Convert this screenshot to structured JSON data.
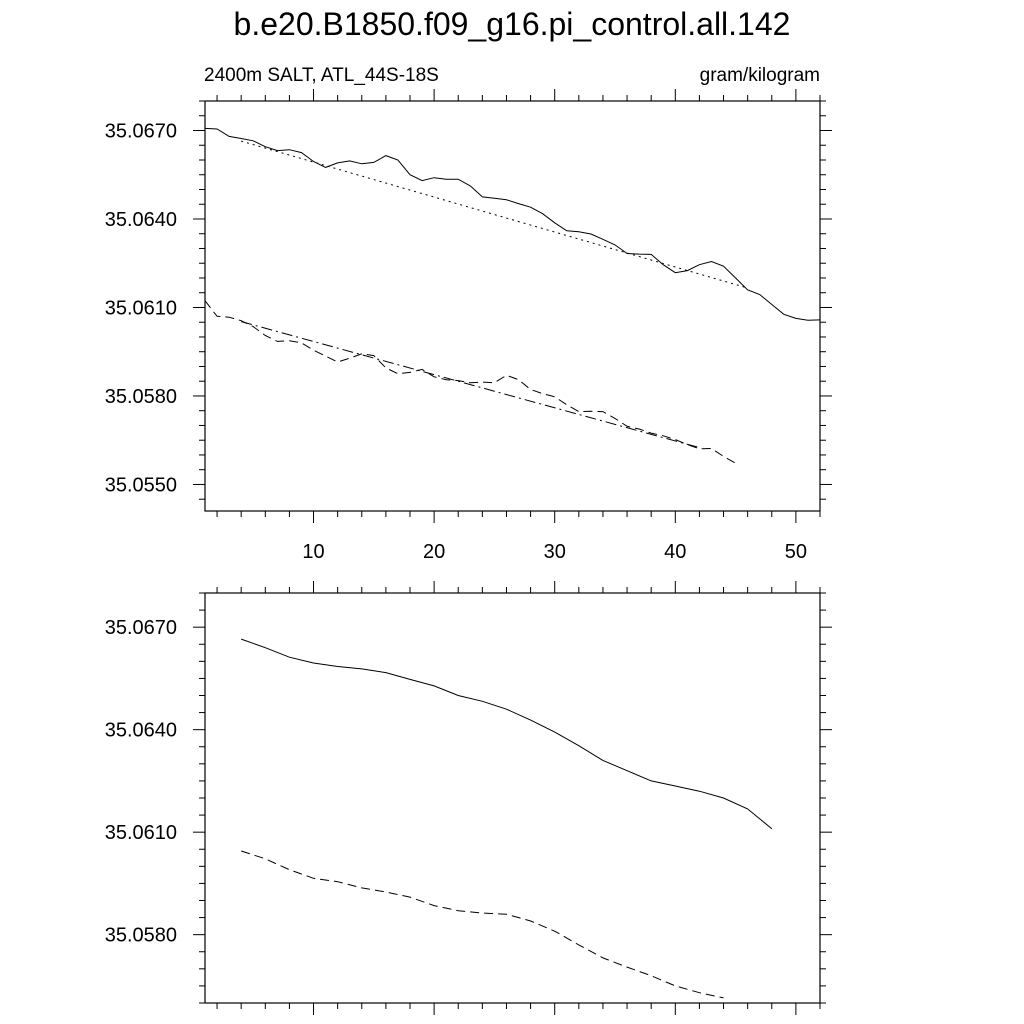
{
  "title": "b.e20.B1850.f09_g16.pi_control.all.142",
  "subtitle_left": "2400m SALT, ATL_44S-18S",
  "subtitle_right": "gram/kilogram",
  "chart_data": [
    {
      "type": "line",
      "panel": "top",
      "xlim": [
        1,
        52
      ],
      "ylim": [
        35.0541,
        35.068
      ],
      "xticks": [
        10,
        20,
        30,
        40,
        50
      ],
      "yticks": [
        35.055,
        35.058,
        35.061,
        35.064,
        35.067
      ],
      "ytick_labels": [
        "35.0550",
        "35.0580",
        "35.0610",
        "35.0640",
        "35.0670"
      ],
      "xtick_labels": [
        "10",
        "20",
        "30",
        "40",
        "50"
      ],
      "series": [
        {
          "style": "solid",
          "x": [
            1,
            2,
            3,
            4,
            5,
            6,
            7,
            8,
            9,
            10,
            11,
            12,
            13,
            14,
            15,
            16,
            17,
            18,
            19,
            20,
            21,
            22,
            23,
            24,
            25,
            26,
            27,
            28,
            29,
            30,
            31,
            32,
            33,
            34,
            35,
            36,
            37,
            38,
            39,
            40,
            41,
            42,
            43,
            44,
            45,
            46,
            47,
            48,
            49,
            50,
            51,
            52
          ],
          "y": [
            35.06707,
            35.06705,
            35.0668,
            35.06673,
            35.06665,
            35.06645,
            35.06632,
            35.06635,
            35.06625,
            35.06595,
            35.06575,
            35.0659,
            35.06597,
            35.06587,
            35.06592,
            35.06615,
            35.066,
            35.0655,
            35.0653,
            35.0654,
            35.06535,
            35.06535,
            35.06512,
            35.06475,
            35.0647,
            35.06465,
            35.06452,
            35.0644,
            35.06418,
            35.06387,
            35.0636,
            35.06357,
            35.06349,
            35.06331,
            35.06312,
            35.06283,
            35.06281,
            35.0628,
            35.06245,
            35.06218,
            35.06225,
            35.06245,
            35.06256,
            35.0624,
            35.062,
            35.0616,
            35.06144,
            35.0611,
            35.06077,
            35.06063,
            35.06057,
            35.06058
          ]
        },
        {
          "style": "dotted",
          "x": [
            4,
            46
          ],
          "y": [
            35.06664,
            35.06166
          ]
        },
        {
          "style": "dashed",
          "x": [
            1,
            2,
            3,
            4,
            5,
            6,
            7,
            8,
            9,
            10,
            11,
            12,
            13,
            14,
            15,
            16,
            17,
            18,
            19,
            20,
            21,
            22,
            23,
            24,
            25,
            26,
            27,
            28,
            29,
            30,
            31,
            32,
            33,
            34,
            35,
            36,
            37,
            38,
            39,
            40,
            41,
            42,
            43,
            44,
            45
          ],
          "y": [
            35.06123,
            35.0607,
            35.06067,
            35.06055,
            35.06035,
            35.06005,
            35.05985,
            35.05987,
            35.0598,
            35.05955,
            35.05935,
            35.05915,
            35.05928,
            35.05943,
            35.05937,
            35.05895,
            35.05875,
            35.0588,
            35.0589,
            35.05865,
            35.05855,
            35.05852,
            35.05845,
            35.05847,
            35.05845,
            35.0587,
            35.05855,
            35.05822,
            35.05808,
            35.05797,
            35.0577,
            35.05747,
            35.05748,
            35.05747,
            35.05724,
            35.05697,
            35.05688,
            35.05674,
            35.05665,
            35.05652,
            35.05635,
            35.05621,
            35.05622,
            35.05595,
            35.05572
          ]
        },
        {
          "style": "dashdot",
          "x": [
            4,
            42
          ],
          "y": [
            35.06052,
            35.05625
          ]
        }
      ]
    },
    {
      "type": "line",
      "panel": "bottom",
      "xlim": [
        1,
        52
      ],
      "ylim": [
        35.056,
        35.068
      ],
      "xticks": [
        10,
        20,
        30,
        40,
        50
      ],
      "yticks": [
        35.058,
        35.061,
        35.064,
        35.067
      ],
      "ytick_labels": [
        "35.0580",
        "35.0610",
        "35.0640",
        "35.0670"
      ],
      "series": [
        {
          "style": "solid",
          "x": [
            4,
            6,
            8,
            10,
            12,
            14,
            16,
            18,
            20,
            22,
            24,
            26,
            28,
            30,
            32,
            34,
            36,
            38,
            40,
            42,
            44,
            46,
            48
          ],
          "y": [
            35.06665,
            35.0664,
            35.06612,
            35.06595,
            35.06585,
            35.06578,
            35.06567,
            35.06547,
            35.06528,
            35.065,
            35.06483,
            35.0646,
            35.06428,
            35.06393,
            35.06353,
            35.0631,
            35.0628,
            35.0625,
            35.06235,
            35.0622,
            35.062,
            35.06168,
            35.0611
          ]
        },
        {
          "style": "dashed",
          "x": [
            4,
            6,
            8,
            10,
            12,
            14,
            16,
            18,
            20,
            22,
            24,
            26,
            28,
            30,
            32,
            34,
            36,
            38,
            40,
            42,
            44
          ],
          "y": [
            35.06045,
            35.06022,
            35.0599,
            35.05965,
            35.05955,
            35.05937,
            35.05925,
            35.0591,
            35.05885,
            35.0587,
            35.05863,
            35.0586,
            35.0584,
            35.0581,
            35.0577,
            35.05732,
            35.05705,
            35.0568,
            35.0565,
            35.0563,
            35.05615
          ]
        }
      ]
    }
  ]
}
